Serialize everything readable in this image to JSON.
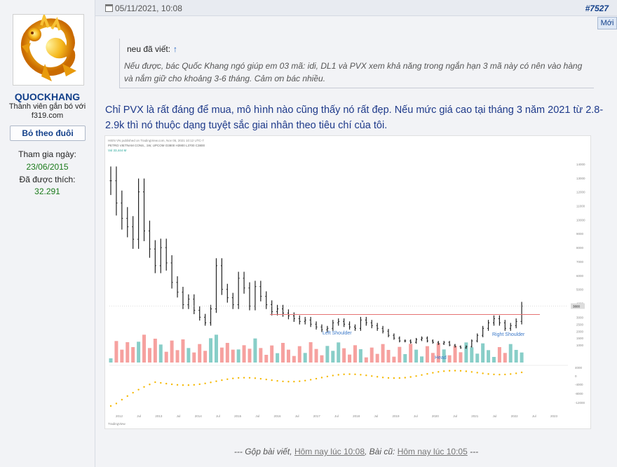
{
  "user": {
    "name": "QUOCKHANG",
    "title_line1": "Thành viên gắn bó với",
    "title_line2": "f319.com",
    "follow_label": "Bỏ theo đuôi",
    "joined_label": "Tham gia ngày:",
    "joined_value": "23/06/2015",
    "likes_label": "Đã được thích:",
    "likes_value": "32.291"
  },
  "post": {
    "date": "05/11/2021, 10:08",
    "number": "#7527",
    "new_badge": "Mới",
    "quote_author": "neu đã viết:",
    "quote_arrow": "↑",
    "quote_text": "Nếu được, bác Quốc Khang ngó giúp em 03 mã: idi, DL1 và PVX xem khả năng trong ngắn hạn 3 mã này có nên vào hàng và nắm giữ cho khoảng 3-6 tháng. Cảm ơn bác nhiều.",
    "body": "Chỉ PVX là rất đáng để mua, mô hình nào cũng thấy nó rất đẹp. Nếu mức giá cao tại tháng 3 năm 2021 từ 2.8-2.9k thì nó thuộc dạng tuyệt sắc giai nhân theo tiêu chí của tôi.",
    "merge_prefix": "--- Gộp bài viết,",
    "merge_time1": "Hôm nay lúc 10:08",
    "merge_mid": ", Bài cũ:",
    "merge_time2": "Hôm nay lúc 10:05",
    "merge_suffix": "---"
  },
  "chart_data": {
    "type": "candlestick",
    "header_line1": "HIEN VN published on TradingView.com, Nov 05, 2021 10:12 UTC-7",
    "header_line2": "PETRO VIETNAM CONS., 1W, UPCOM O3800 H3900 L3700 C3800",
    "volume_label": "Vol  33,444 M",
    "annotations": [
      "Left Shoulder",
      "Head",
      "Right Shoulder"
    ],
    "x_ticks": [
      "2012",
      "Jul",
      "2013",
      "Jul",
      "2014",
      "Jul",
      "2015",
      "Jul",
      "2016",
      "Jul",
      "2017",
      "Jul",
      "2018",
      "Jul",
      "2019",
      "Jul",
      "2020",
      "Jul",
      "2021",
      "Jul",
      "2022",
      "Jul",
      "2023"
    ],
    "y_ticks": [
      "14000",
      "13000",
      "12000",
      "11000",
      "10000",
      "9000",
      "8000",
      "7000",
      "6000",
      "5000",
      "4000",
      "3800",
      "3000",
      "2500",
      "2000",
      "1500",
      "1000"
    ],
    "indicator_ticks": [
      "4000",
      "0",
      "-4000",
      "-8000",
      "-12000"
    ],
    "resistance": 3200,
    "last_price": 3800,
    "watermark": "TradingView",
    "colors": {
      "up": "#26a69a",
      "down": "#ef5350",
      "price": "#222222",
      "resistance": "#e57373",
      "indicator": "#f5b800"
    },
    "price_series": [
      12800,
      11200,
      10100,
      9500,
      8600,
      12000,
      9200,
      7900,
      6700,
      8000,
      6900,
      5500,
      4800,
      3900,
      4300,
      3500,
      3000,
      2600,
      3600,
      6700,
      5000,
      4400,
      3900,
      5800,
      5100,
      3800,
      5200,
      4500,
      3900,
      3400,
      3600,
      3300,
      3100,
      2900,
      2700,
      2800,
      2500,
      2300,
      2100,
      2200,
      2600,
      2700,
      2500,
      2300,
      2200,
      2800,
      2600,
      2400,
      2200,
      2000,
      1700,
      1500,
      1300,
      1300,
      1200,
      1400,
      1500,
      1300,
      1200,
      1100,
      1200,
      1000,
      900,
      800,
      900,
      1300,
      1700,
      2200,
      2600,
      2900,
      2600,
      2200,
      2400,
      2700,
      3800
    ]
  }
}
